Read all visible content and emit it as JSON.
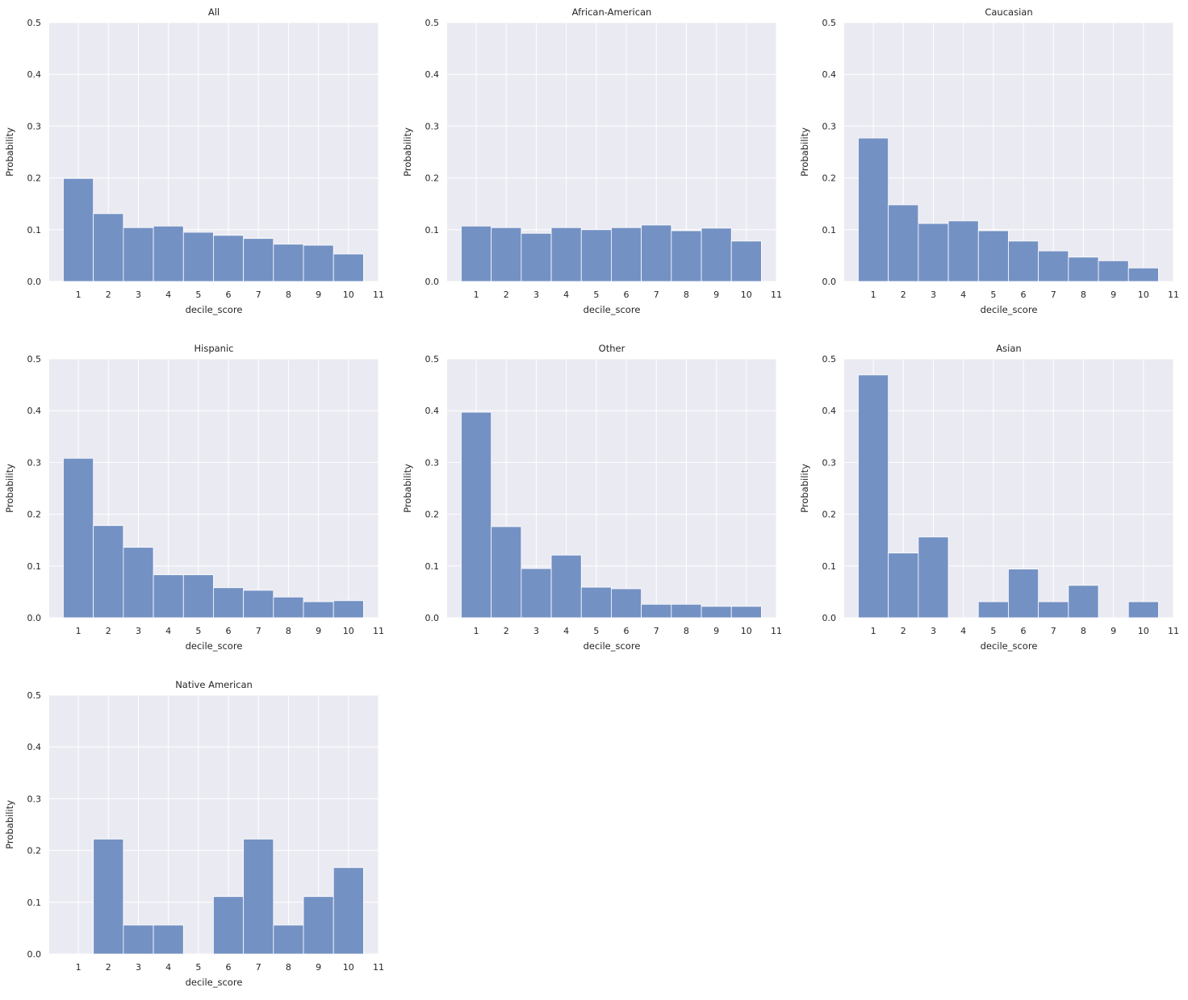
{
  "chart_data": [
    {
      "type": "bar",
      "title": "All",
      "xlabel": "decile_score",
      "ylabel": "Probability",
      "ylim": [
        0,
        0.5
      ],
      "xlim": [
        0.03,
        11
      ],
      "grid": true,
      "categories": [
        1,
        2,
        3,
        4,
        5,
        6,
        7,
        8,
        9,
        10
      ],
      "values": [
        0.199,
        0.131,
        0.104,
        0.107,
        0.095,
        0.089,
        0.083,
        0.072,
        0.07,
        0.053
      ]
    },
    {
      "type": "bar",
      "title": "African-American",
      "xlabel": "decile_score",
      "ylabel": "Probability",
      "ylim": [
        0,
        0.5
      ],
      "xlim": [
        0.03,
        11
      ],
      "grid": true,
      "categories": [
        1,
        2,
        3,
        4,
        5,
        6,
        7,
        8,
        9,
        10
      ],
      "values": [
        0.107,
        0.104,
        0.093,
        0.104,
        0.1,
        0.104,
        0.109,
        0.098,
        0.103,
        0.078
      ]
    },
    {
      "type": "bar",
      "title": "Caucasian",
      "xlabel": "decile_score",
      "ylabel": "Probability",
      "ylim": [
        0,
        0.5
      ],
      "xlim": [
        0.03,
        11
      ],
      "grid": true,
      "categories": [
        1,
        2,
        3,
        4,
        5,
        6,
        7,
        8,
        9,
        10
      ],
      "values": [
        0.277,
        0.148,
        0.112,
        0.117,
        0.098,
        0.078,
        0.059,
        0.047,
        0.04,
        0.026
      ]
    },
    {
      "type": "bar",
      "title": "Hispanic",
      "xlabel": "decile_score",
      "ylabel": "Probability",
      "ylim": [
        0,
        0.5
      ],
      "xlim": [
        0.03,
        11
      ],
      "grid": true,
      "categories": [
        1,
        2,
        3,
        4,
        5,
        6,
        7,
        8,
        9,
        10
      ],
      "values": [
        0.308,
        0.178,
        0.136,
        0.083,
        0.083,
        0.058,
        0.053,
        0.04,
        0.031,
        0.033
      ]
    },
    {
      "type": "bar",
      "title": "Other",
      "xlabel": "decile_score",
      "ylabel": "Probability",
      "ylim": [
        0,
        0.5
      ],
      "xlim": [
        0.03,
        11
      ],
      "grid": true,
      "categories": [
        1,
        2,
        3,
        4,
        5,
        6,
        7,
        8,
        9,
        10
      ],
      "values": [
        0.397,
        0.176,
        0.095,
        0.121,
        0.059,
        0.056,
        0.026,
        0.026,
        0.022,
        0.022
      ]
    },
    {
      "type": "bar",
      "title": "Asian",
      "xlabel": "decile_score",
      "ylabel": "Probability",
      "ylim": [
        0,
        0.5
      ],
      "xlim": [
        0.03,
        11
      ],
      "grid": true,
      "categories": [
        1,
        2,
        3,
        4,
        5,
        6,
        7,
        8,
        9,
        10
      ],
      "values": [
        0.469,
        0.125,
        0.156,
        0,
        0.031,
        0.094,
        0.031,
        0.0625,
        0,
        0.031
      ]
    },
    {
      "type": "bar",
      "title": "Native American",
      "xlabel": "decile_score",
      "ylabel": "Probability",
      "ylim": [
        0,
        0.5
      ],
      "xlim": [
        0.03,
        11
      ],
      "grid": true,
      "categories": [
        1,
        2,
        3,
        4,
        5,
        6,
        7,
        8,
        9,
        10
      ],
      "values": [
        0,
        0.222,
        0.056,
        0.056,
        0,
        0.111,
        0.222,
        0.056,
        0.111,
        0.167
      ]
    }
  ],
  "yticks": [
    "0.0",
    "0.1",
    "0.2",
    "0.3",
    "0.4",
    "0.5"
  ],
  "xticks": [
    "1",
    "2",
    "3",
    "4",
    "5",
    "6",
    "7",
    "8",
    "9",
    "10",
    "11"
  ],
  "colors": {
    "bar": "#7491c4",
    "bar_edge": "#ffffff",
    "plot_bg": "#eaeaf2",
    "grid": "#ffffff"
  }
}
